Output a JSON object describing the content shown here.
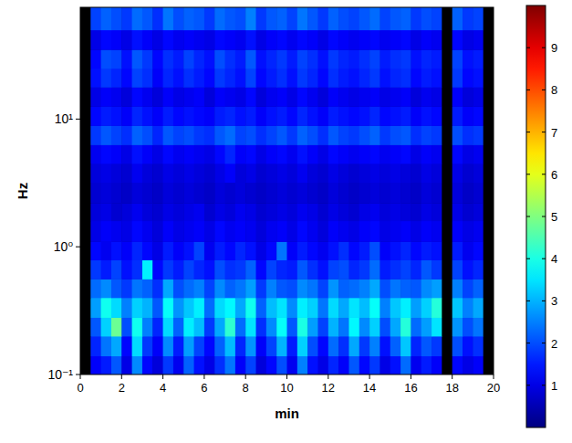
{
  "chart_data": {
    "type": "heatmap",
    "x_label": "min",
    "y_label": "Hz",
    "xlim": [
      0,
      20
    ],
    "xticks": [
      0,
      2,
      4,
      6,
      8,
      10,
      12,
      14,
      16,
      18,
      20
    ],
    "ylim": [
      0.1,
      75
    ],
    "log": "y",
    "yticks": [
      {
        "value": 0.1,
        "label": "10⁻¹"
      },
      {
        "value": 1,
        "label": "10⁰"
      },
      {
        "value": 10,
        "label": "10¹"
      }
    ],
    "colorbar_range": [
      0,
      10
    ],
    "colorbar_ticks": [
      1,
      2,
      3,
      4,
      5,
      6,
      7,
      8,
      9
    ],
    "x_edges": [
      0,
      0.5,
      1,
      1.5,
      2,
      2.5,
      3,
      3.5,
      4,
      4.5,
      5,
      5.5,
      6,
      6.5,
      7,
      7.5,
      8,
      8.5,
      9,
      9.5,
      10,
      10.5,
      11,
      11.5,
      12,
      12.5,
      13,
      13.5,
      14,
      14.5,
      15,
      15.5,
      16,
      16.5,
      17,
      17.5,
      18,
      18.5,
      19,
      19.5,
      20
    ],
    "y_edges": [
      0.1,
      0.14,
      0.2,
      0.28,
      0.4,
      0.56,
      0.79,
      1.1,
      1.6,
      2.2,
      3.2,
      4.5,
      6.3,
      8.9,
      12.6,
      17.8,
      25,
      35,
      50,
      75
    ],
    "cells": [
      [
        null,
        1.2,
        1.5,
        2.1,
        1.0,
        2.6,
        1.3,
        0.9,
        1.8,
        1.1,
        2.2,
        1.4,
        1.0,
        1.7,
        2.4,
        1.2,
        1.9,
        0.9,
        1.3,
        2.0,
        1.1,
        2.5,
        1.4,
        1.0,
        1.6,
        1.2,
        2.1,
        1.3,
        1.8,
        1.0,
        1.4,
        2.3,
        1.1,
        1.5,
        1.2,
        null,
        1.3,
        1.0,
        1.2,
        null
      ],
      [
        null,
        1.6,
        2.4,
        2.9,
        1.3,
        3.4,
        1.8,
        1.2,
        2.6,
        1.5,
        2.8,
        1.9,
        1.3,
        2.2,
        3.1,
        1.6,
        2.7,
        1.2,
        1.9,
        3.0,
        1.5,
        3.3,
        2.0,
        1.3,
        2.3,
        1.7,
        2.9,
        1.8,
        2.5,
        1.4,
        2.2,
        3.2,
        1.6,
        2.1,
        1.8,
        null,
        2.0,
        1.4,
        1.7,
        null
      ],
      [
        null,
        2.1,
        3.3,
        4.8,
        2.0,
        3.9,
        2.5,
        1.6,
        3.4,
        2.2,
        3.6,
        3.1,
        1.8,
        2.9,
        4.2,
        2.3,
        3.5,
        1.7,
        2.6,
        3.8,
        2.1,
        4.0,
        2.8,
        1.9,
        3.0,
        2.4,
        3.7,
        2.6,
        3.3,
        2.0,
        2.9,
        4.1,
        2.3,
        2.8,
        3.5,
        null,
        2.7,
        2.0,
        2.4,
        null
      ],
      [
        null,
        2.8,
        3.9,
        3.4,
        2.5,
        3.3,
        3.0,
        2.1,
        3.8,
        2.7,
        3.2,
        3.6,
        2.3,
        3.4,
        3.7,
        2.9,
        3.9,
        2.2,
        3.1,
        3.5,
        2.6,
        3.6,
        3.3,
        2.4,
        3.4,
        2.9,
        3.5,
        3.1,
        3.8,
        2.5,
        3.2,
        3.6,
        2.8,
        3.3,
        4.1,
        null,
        3.2,
        2.5,
        2.9,
        null
      ],
      [
        null,
        2.3,
        2.6,
        2.1,
        1.8,
        2.4,
        2.2,
        1.7,
        2.9,
        2.0,
        2.3,
        2.5,
        1.9,
        2.6,
        2.2,
        2.4,
        2.8,
        1.8,
        2.5,
        2.1,
        2.0,
        2.6,
        2.4,
        1.9,
        2.7,
        2.2,
        2.3,
        2.5,
        2.9,
        2.0,
        2.4,
        2.2,
        2.1,
        2.6,
        2.8,
        null,
        2.5,
        1.9,
        2.2,
        null
      ],
      [
        null,
        1.8,
        1.5,
        1.9,
        1.4,
        1.7,
        3.6,
        1.3,
        1.8,
        1.5,
        1.9,
        1.6,
        1.4,
        2.0,
        1.7,
        1.8,
        2.2,
        1.3,
        1.9,
        1.6,
        1.5,
        2.1,
        1.7,
        1.4,
        1.9,
        2.0,
        1.6,
        1.8,
        2.3,
        1.5,
        1.7,
        1.9,
        1.6,
        2.1,
        1.8,
        null,
        1.9,
        1.4,
        1.6,
        null
      ],
      [
        null,
        1.3,
        1.1,
        1.4,
        1.2,
        1.6,
        1.3,
        1.0,
        1.5,
        1.2,
        1.4,
        1.9,
        1.1,
        1.5,
        1.3,
        1.6,
        1.4,
        1.0,
        1.3,
        2.4,
        1.2,
        1.5,
        1.3,
        1.1,
        1.4,
        1.7,
        1.3,
        1.5,
        2.0,
        1.2,
        1.4,
        1.6,
        1.3,
        1.5,
        1.4,
        null,
        1.5,
        1.1,
        1.3,
        null
      ],
      [
        null,
        1.0,
        1.2,
        1.1,
        1.0,
        1.3,
        1.1,
        0.9,
        1.2,
        1.0,
        1.1,
        1.2,
        1.0,
        1.3,
        1.1,
        1.2,
        1.1,
        0.9,
        1.1,
        1.2,
        1.0,
        1.3,
        1.1,
        0.9,
        1.2,
        1.1,
        1.0,
        1.2,
        1.3,
        1.0,
        1.1,
        1.2,
        1.0,
        1.2,
        1.1,
        null,
        1.2,
        1.0,
        1.1,
        null
      ],
      [
        null,
        0.9,
        1.0,
        0.8,
        0.9,
        1.1,
        0.9,
        0.8,
        1.0,
        0.9,
        1.0,
        1.1,
        0.8,
        1.0,
        0.9,
        1.1,
        1.0,
        0.8,
        0.9,
        1.0,
        0.9,
        1.1,
        1.0,
        0.8,
        1.0,
        0.9,
        0.8,
        1.0,
        1.1,
        0.9,
        1.0,
        0.9,
        0.8,
        1.0,
        0.9,
        null,
        1.0,
        0.8,
        0.9,
        null
      ],
      [
        null,
        0.8,
        0.9,
        0.8,
        0.7,
        0.9,
        0.8,
        0.7,
        0.9,
        0.8,
        0.9,
        0.8,
        0.7,
        0.9,
        0.8,
        0.9,
        0.8,
        0.7,
        0.8,
        0.9,
        0.8,
        0.9,
        0.8,
        0.7,
        0.9,
        0.8,
        0.7,
        0.8,
        0.9,
        0.8,
        0.9,
        0.8,
        0.7,
        0.9,
        0.8,
        null,
        0.9,
        0.7,
        0.8,
        null
      ],
      [
        null,
        0.9,
        1.0,
        0.9,
        0.8,
        1.1,
        0.9,
        0.8,
        1.0,
        0.9,
        1.0,
        0.9,
        0.8,
        1.0,
        1.2,
        0.9,
        1.0,
        0.8,
        0.9,
        1.0,
        0.9,
        1.1,
        0.9,
        0.8,
        1.0,
        0.9,
        0.8,
        0.9,
        1.0,
        0.9,
        1.0,
        0.9,
        0.8,
        1.0,
        0.9,
        null,
        1.0,
        0.8,
        0.9,
        null
      ],
      [
        null,
        1.1,
        1.3,
        1.2,
        1.0,
        1.4,
        1.2,
        1.0,
        1.3,
        1.1,
        1.2,
        1.1,
        1.0,
        1.3,
        1.6,
        1.2,
        1.3,
        1.0,
        1.2,
        1.3,
        1.1,
        1.4,
        1.2,
        1.0,
        1.3,
        1.2,
        1.1,
        1.2,
        1.3,
        1.1,
        1.2,
        1.3,
        1.0,
        1.2,
        1.1,
        null,
        1.3,
        1.0,
        1.1,
        null
      ],
      [
        null,
        1.8,
        2.1,
        1.9,
        1.7,
        2.2,
        2.0,
        1.6,
        2.1,
        1.9,
        2.0,
        1.8,
        1.7,
        2.1,
        2.3,
        1.9,
        2.0,
        1.7,
        1.9,
        2.1,
        1.8,
        2.2,
        2.0,
        1.7,
        2.1,
        1.9,
        1.8,
        2.0,
        2.2,
        1.8,
        2.0,
        2.1,
        1.7,
        1.9,
        1.8,
        null,
        2.0,
        1.7,
        1.8,
        null
      ],
      [
        null,
        1.3,
        1.5,
        1.4,
        1.2,
        1.6,
        1.4,
        1.2,
        1.5,
        1.3,
        1.4,
        1.3,
        1.2,
        1.5,
        1.6,
        1.4,
        1.5,
        1.2,
        1.4,
        1.5,
        1.3,
        1.6,
        1.4,
        1.2,
        1.5,
        1.4,
        1.3,
        1.4,
        1.6,
        1.3,
        1.4,
        1.5,
        1.2,
        1.4,
        1.3,
        null,
        1.5,
        1.2,
        1.3,
        null
      ],
      [
        null,
        1.0,
        1.2,
        1.1,
        0.9,
        1.3,
        1.1,
        0.9,
        1.2,
        1.0,
        1.1,
        1.2,
        0.9,
        1.2,
        1.1,
        1.0,
        1.3,
        0.9,
        1.1,
        1.2,
        1.0,
        1.3,
        1.1,
        0.9,
        1.2,
        1.1,
        1.0,
        1.1,
        1.2,
        1.0,
        1.1,
        1.2,
        0.9,
        1.1,
        1.0,
        null,
        1.2,
        0.9,
        1.0,
        null
      ],
      [
        null,
        1.4,
        1.8,
        1.6,
        1.3,
        1.9,
        1.7,
        1.2,
        1.6,
        1.4,
        1.7,
        1.5,
        1.3,
        1.8,
        1.6,
        1.4,
        1.9,
        1.3,
        1.5,
        1.7,
        1.4,
        1.8,
        1.6,
        1.3,
        1.7,
        1.5,
        1.4,
        1.6,
        1.8,
        1.4,
        1.6,
        1.7,
        1.3,
        1.5,
        1.4,
        null,
        1.8,
        1.3,
        1.4,
        null
      ],
      [
        null,
        1.3,
        2.0,
        1.9,
        1.4,
        2.1,
        1.8,
        1.3,
        1.7,
        1.5,
        1.9,
        1.6,
        1.4,
        2.0,
        1.7,
        1.5,
        2.1,
        1.4,
        1.6,
        1.8,
        1.5,
        1.9,
        1.7,
        1.4,
        1.8,
        1.6,
        1.5,
        1.7,
        1.9,
        1.5,
        1.7,
        1.8,
        1.4,
        1.6,
        1.5,
        null,
        1.9,
        1.4,
        1.5,
        null
      ],
      [
        null,
        1.0,
        1.3,
        1.2,
        1.0,
        1.4,
        1.2,
        1.0,
        1.3,
        1.1,
        1.2,
        1.1,
        1.0,
        1.3,
        1.2,
        1.1,
        1.4,
        1.0,
        1.2,
        1.3,
        1.1,
        1.3,
        1.2,
        1.0,
        1.3,
        1.2,
        1.1,
        1.2,
        1.3,
        1.1,
        1.2,
        1.3,
        1.0,
        1.2,
        1.1,
        null,
        1.3,
        1.0,
        1.1,
        null
      ],
      [
        null,
        1.9,
        2.2,
        2.0,
        1.8,
        2.3,
        2.1,
        1.7,
        2.4,
        2.0,
        2.2,
        2.1,
        1.8,
        2.3,
        2.1,
        2.0,
        2.5,
        1.8,
        2.1,
        2.2,
        1.9,
        2.4,
        2.1,
        1.8,
        2.2,
        2.0,
        1.9,
        2.1,
        2.3,
        1.9,
        2.1,
        2.2,
        1.8,
        2.0,
        1.9,
        null,
        2.2,
        1.8,
        1.9,
        null
      ]
    ]
  }
}
